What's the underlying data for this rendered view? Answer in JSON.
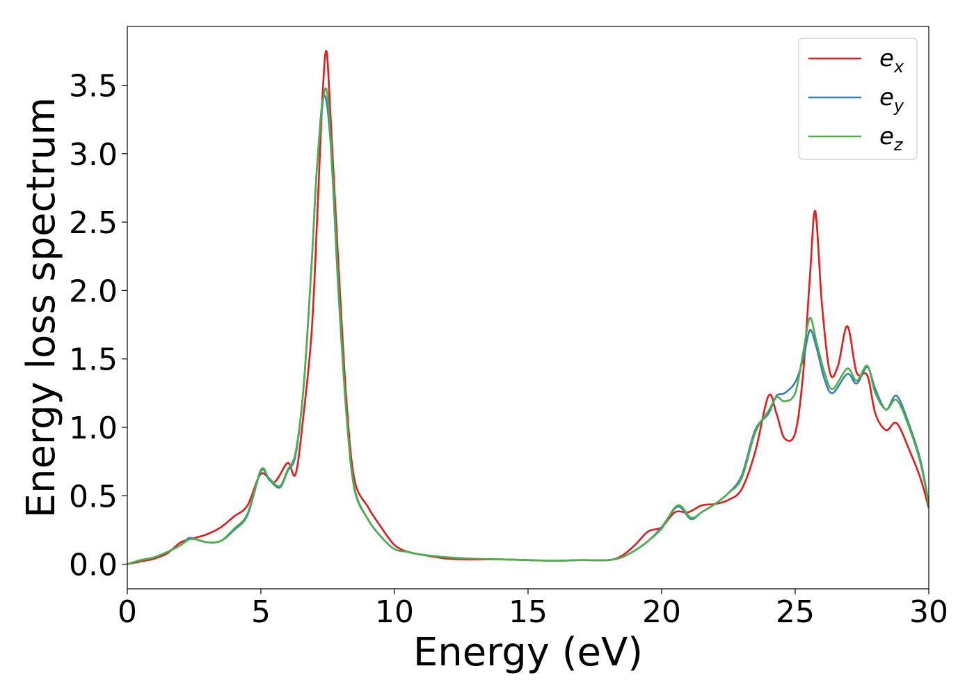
{
  "chart_data": {
    "type": "line",
    "title": "",
    "xlabel": "Energy (eV)",
    "ylabel": "Energy loss spectrum",
    "xlim": [
      0,
      30
    ],
    "ylim": [
      -0.18,
      3.93
    ],
    "xticks": [
      0,
      5,
      10,
      15,
      20,
      25,
      30
    ],
    "xtick_labels": [
      "0",
      "5",
      "10",
      "15",
      "20",
      "25",
      "30"
    ],
    "yticks": [
      0.0,
      0.5,
      1.0,
      1.5,
      2.0,
      2.5,
      3.0,
      3.5
    ],
    "ytick_labels": [
      "0.0",
      "0.5",
      "1.0",
      "1.5",
      "2.0",
      "2.5",
      "3.0",
      "3.5"
    ],
    "grid": false,
    "legend_position": "top-right",
    "series": [
      {
        "name": "e",
        "subscript": "x",
        "color": "#e41a1c",
        "points": [
          [
            0,
            0.0
          ],
          [
            0.5,
            0.02
          ],
          [
            1.0,
            0.04
          ],
          [
            1.5,
            0.08
          ],
          [
            2.0,
            0.16
          ],
          [
            2.5,
            0.19
          ],
          [
            3.0,
            0.22
          ],
          [
            3.5,
            0.27
          ],
          [
            4.0,
            0.35
          ],
          [
            4.5,
            0.43
          ],
          [
            5.0,
            0.66
          ],
          [
            5.5,
            0.6
          ],
          [
            6.0,
            0.74
          ],
          [
            6.3,
            0.66
          ],
          [
            6.6,
            1.1
          ],
          [
            6.9,
            1.7
          ],
          [
            7.1,
            2.5
          ],
          [
            7.3,
            3.4
          ],
          [
            7.45,
            3.75
          ],
          [
            7.6,
            3.3
          ],
          [
            7.9,
            2.2
          ],
          [
            8.2,
            1.2
          ],
          [
            8.5,
            0.62
          ],
          [
            9.0,
            0.42
          ],
          [
            9.5,
            0.27
          ],
          [
            10.0,
            0.14
          ],
          [
            10.5,
            0.09
          ],
          [
            11.0,
            0.07
          ],
          [
            12.0,
            0.04
          ],
          [
            13.0,
            0.035
          ],
          [
            14.0,
            0.035
          ],
          [
            15.0,
            0.03
          ],
          [
            16.0,
            0.025
          ],
          [
            17.0,
            0.03
          ],
          [
            18.0,
            0.03
          ],
          [
            18.5,
            0.06
          ],
          [
            19.0,
            0.14
          ],
          [
            19.5,
            0.24
          ],
          [
            20.0,
            0.27
          ],
          [
            20.5,
            0.38
          ],
          [
            21.0,
            0.38
          ],
          [
            21.5,
            0.43
          ],
          [
            22.0,
            0.44
          ],
          [
            22.5,
            0.47
          ],
          [
            23.0,
            0.55
          ],
          [
            23.5,
            0.82
          ],
          [
            24.0,
            1.23
          ],
          [
            24.3,
            1.1
          ],
          [
            24.6,
            0.92
          ],
          [
            25.0,
            0.96
          ],
          [
            25.3,
            1.4
          ],
          [
            25.55,
            2.1
          ],
          [
            25.75,
            2.58
          ],
          [
            26.0,
            1.9
          ],
          [
            26.3,
            1.4
          ],
          [
            26.6,
            1.45
          ],
          [
            26.95,
            1.74
          ],
          [
            27.3,
            1.4
          ],
          [
            27.7,
            1.38
          ],
          [
            28.0,
            1.1
          ],
          [
            28.4,
            0.98
          ],
          [
            28.8,
            1.03
          ],
          [
            29.3,
            0.82
          ],
          [
            29.7,
            0.62
          ],
          [
            30.0,
            0.41
          ]
        ]
      },
      {
        "name": "e",
        "subscript": "y",
        "color": "#377eb8",
        "points": [
          [
            0,
            0.0
          ],
          [
            0.5,
            0.03
          ],
          [
            1.0,
            0.05
          ],
          [
            1.5,
            0.09
          ],
          [
            2.0,
            0.14
          ],
          [
            2.3,
            0.19
          ],
          [
            2.6,
            0.18
          ],
          [
            3.0,
            0.16
          ],
          [
            3.5,
            0.17
          ],
          [
            4.0,
            0.25
          ],
          [
            4.5,
            0.36
          ],
          [
            5.0,
            0.68
          ],
          [
            5.3,
            0.62
          ],
          [
            5.7,
            0.56
          ],
          [
            6.0,
            0.68
          ],
          [
            6.3,
            0.8
          ],
          [
            6.6,
            1.3
          ],
          [
            6.9,
            2.2
          ],
          [
            7.1,
            2.9
          ],
          [
            7.35,
            3.42
          ],
          [
            7.6,
            3.1
          ],
          [
            7.9,
            2.0
          ],
          [
            8.2,
            1.1
          ],
          [
            8.5,
            0.55
          ],
          [
            9.0,
            0.33
          ],
          [
            9.5,
            0.2
          ],
          [
            10.0,
            0.11
          ],
          [
            10.5,
            0.09
          ],
          [
            11.0,
            0.07
          ],
          [
            12.0,
            0.05
          ],
          [
            13.0,
            0.04
          ],
          [
            14.0,
            0.035
          ],
          [
            15.0,
            0.03
          ],
          [
            16.0,
            0.025
          ],
          [
            17.0,
            0.03
          ],
          [
            18.0,
            0.03
          ],
          [
            18.5,
            0.05
          ],
          [
            19.0,
            0.1
          ],
          [
            19.5,
            0.17
          ],
          [
            20.0,
            0.27
          ],
          [
            20.6,
            0.42
          ],
          [
            21.1,
            0.33
          ],
          [
            21.5,
            0.38
          ],
          [
            22.0,
            0.44
          ],
          [
            22.5,
            0.52
          ],
          [
            23.0,
            0.65
          ],
          [
            23.5,
            0.98
          ],
          [
            24.0,
            1.1
          ],
          [
            24.3,
            1.23
          ],
          [
            24.6,
            1.25
          ],
          [
            25.0,
            1.33
          ],
          [
            25.3,
            1.5
          ],
          [
            25.55,
            1.71
          ],
          [
            25.8,
            1.58
          ],
          [
            26.1,
            1.35
          ],
          [
            26.4,
            1.25
          ],
          [
            26.95,
            1.39
          ],
          [
            27.3,
            1.32
          ],
          [
            27.7,
            1.44
          ],
          [
            28.0,
            1.28
          ],
          [
            28.4,
            1.13
          ],
          [
            28.8,
            1.23
          ],
          [
            29.3,
            1.0
          ],
          [
            29.7,
            0.75
          ],
          [
            30.0,
            0.44
          ]
        ]
      },
      {
        "name": "e",
        "subscript": "z",
        "color": "#4daf4a",
        "points": [
          [
            0,
            0.0
          ],
          [
            0.5,
            0.03
          ],
          [
            1.0,
            0.05
          ],
          [
            1.5,
            0.09
          ],
          [
            2.0,
            0.14
          ],
          [
            2.3,
            0.18
          ],
          [
            2.6,
            0.18
          ],
          [
            3.0,
            0.16
          ],
          [
            3.5,
            0.17
          ],
          [
            4.0,
            0.26
          ],
          [
            4.5,
            0.37
          ],
          [
            5.0,
            0.69
          ],
          [
            5.3,
            0.63
          ],
          [
            5.7,
            0.57
          ],
          [
            6.0,
            0.69
          ],
          [
            6.3,
            0.82
          ],
          [
            6.6,
            1.3
          ],
          [
            6.9,
            2.2
          ],
          [
            7.1,
            2.9
          ],
          [
            7.4,
            3.47
          ],
          [
            7.6,
            3.15
          ],
          [
            7.9,
            2.05
          ],
          [
            8.2,
            1.1
          ],
          [
            8.5,
            0.56
          ],
          [
            9.0,
            0.33
          ],
          [
            9.5,
            0.2
          ],
          [
            10.0,
            0.11
          ],
          [
            10.5,
            0.09
          ],
          [
            11.0,
            0.07
          ],
          [
            12.0,
            0.05
          ],
          [
            13.0,
            0.04
          ],
          [
            14.0,
            0.035
          ],
          [
            15.0,
            0.03
          ],
          [
            16.0,
            0.025
          ],
          [
            17.0,
            0.03
          ],
          [
            18.0,
            0.03
          ],
          [
            18.5,
            0.05
          ],
          [
            19.0,
            0.1
          ],
          [
            19.5,
            0.17
          ],
          [
            20.0,
            0.26
          ],
          [
            20.6,
            0.43
          ],
          [
            21.1,
            0.34
          ],
          [
            21.5,
            0.38
          ],
          [
            22.0,
            0.44
          ],
          [
            22.5,
            0.52
          ],
          [
            23.0,
            0.63
          ],
          [
            23.5,
            0.96
          ],
          [
            24.0,
            1.12
          ],
          [
            24.3,
            1.22
          ],
          [
            24.6,
            1.19
          ],
          [
            25.0,
            1.25
          ],
          [
            25.3,
            1.55
          ],
          [
            25.55,
            1.8
          ],
          [
            25.8,
            1.62
          ],
          [
            26.1,
            1.4
          ],
          [
            26.4,
            1.28
          ],
          [
            26.95,
            1.43
          ],
          [
            27.3,
            1.34
          ],
          [
            27.7,
            1.45
          ],
          [
            28.0,
            1.25
          ],
          [
            28.4,
            1.13
          ],
          [
            28.8,
            1.2
          ],
          [
            29.3,
            0.98
          ],
          [
            29.7,
            0.73
          ],
          [
            30.0,
            0.43
          ]
        ]
      }
    ]
  }
}
